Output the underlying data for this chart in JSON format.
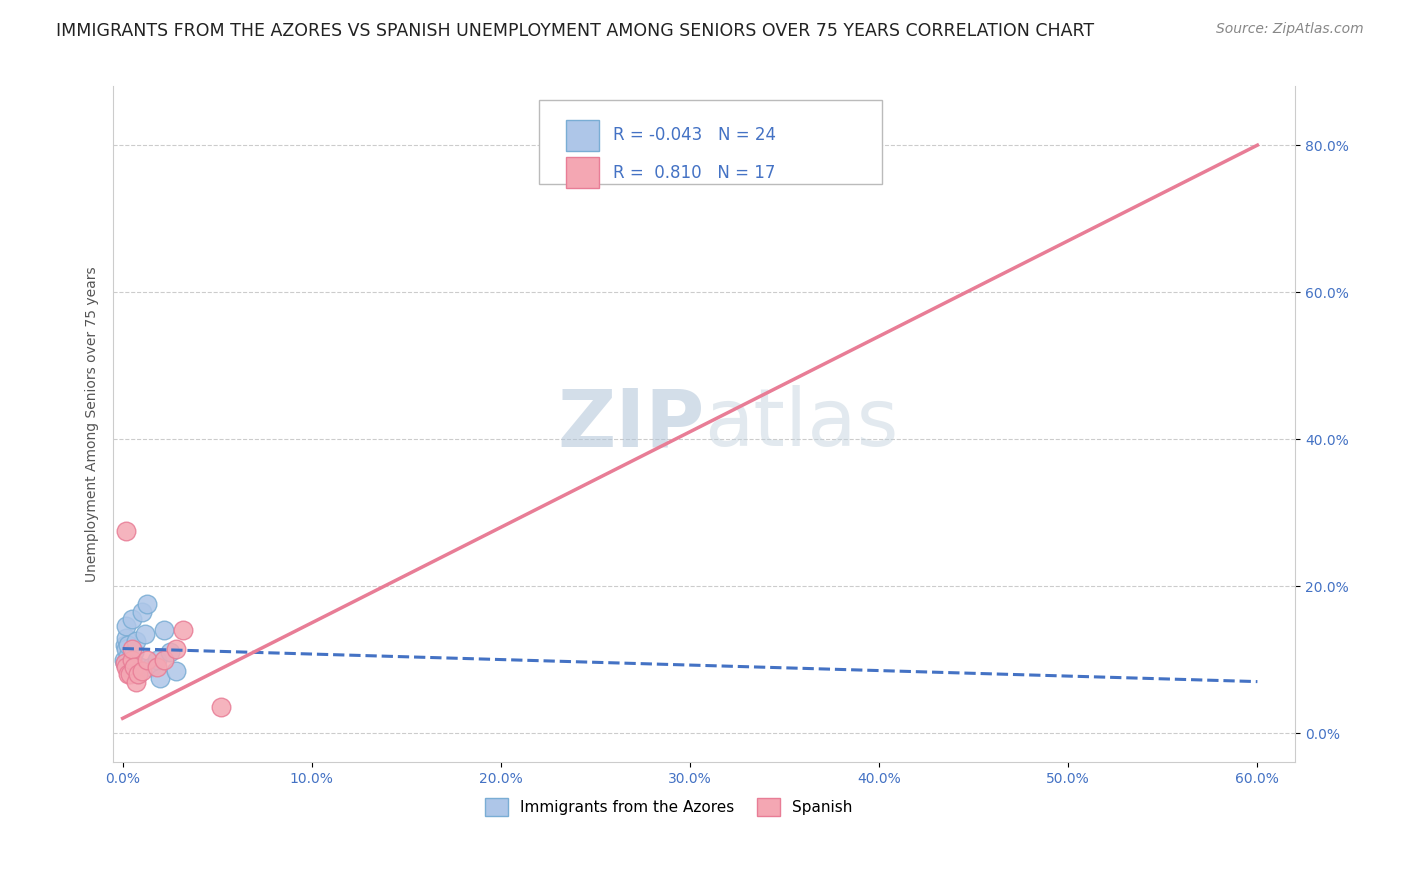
{
  "title": "IMMIGRANTS FROM THE AZORES VS SPANISH UNEMPLOYMENT AMONG SENIORS OVER 75 YEARS CORRELATION CHART",
  "source": "Source: ZipAtlas.com",
  "ylabel": "Unemployment Among Seniors over 75 years",
  "watermark": "ZIPatlas",
  "legend_entries": [
    {
      "label": "Immigrants from the Azores",
      "color": "#aec6e8",
      "edge": "#7aadd4",
      "R": "-0.043",
      "N": "24"
    },
    {
      "label": "Spanish",
      "color": "#f4a7b3",
      "edge": "#e87d96",
      "R": "0.810",
      "N": "17"
    }
  ],
  "blue_scatter_x": [
    0.0005,
    0.001,
    0.001,
    0.002,
    0.002,
    0.002,
    0.003,
    0.003,
    0.004,
    0.005,
    0.005,
    0.006,
    0.007,
    0.008,
    0.009,
    0.01,
    0.012,
    0.013,
    0.015,
    0.018,
    0.02,
    0.022,
    0.025,
    0.028
  ],
  "blue_scatter_y": [
    0.1,
    0.12,
    0.095,
    0.13,
    0.115,
    0.145,
    0.105,
    0.12,
    0.09,
    0.1,
    0.155,
    0.11,
    0.125,
    0.08,
    0.09,
    0.165,
    0.135,
    0.175,
    0.09,
    0.1,
    0.075,
    0.14,
    0.11,
    0.085
  ],
  "pink_scatter_x": [
    0.001,
    0.002,
    0.002,
    0.003,
    0.004,
    0.005,
    0.005,
    0.006,
    0.007,
    0.008,
    0.01,
    0.013,
    0.018,
    0.022,
    0.028,
    0.032,
    0.052
  ],
  "pink_scatter_y": [
    0.095,
    0.09,
    0.275,
    0.08,
    0.08,
    0.1,
    0.115,
    0.09,
    0.07,
    0.08,
    0.085,
    0.1,
    0.09,
    0.1,
    0.115,
    0.14,
    0.035
  ],
  "blue_line_x": [
    0.0,
    0.6
  ],
  "blue_line_y": [
    0.115,
    0.07
  ],
  "pink_line_x": [
    0.0,
    0.6
  ],
  "pink_line_y": [
    0.02,
    0.8
  ],
  "xlim": [
    -0.005,
    0.62
  ],
  "ylim": [
    -0.04,
    0.88
  ],
  "x_ticks": [
    0.0,
    0.1,
    0.2,
    0.3,
    0.4,
    0.5,
    0.6
  ],
  "x_tick_labels": [
    "0.0%",
    "10.0%",
    "20.0%",
    "30.0%",
    "40.0%",
    "50.0%",
    "60.0%"
  ],
  "y_ticks": [
    0.0,
    0.2,
    0.4,
    0.6,
    0.8
  ],
  "y_tick_labels": [
    "0.0%",
    "20.0%",
    "40.0%",
    "60.0%",
    "80.0%"
  ],
  "scatter_color_blue": "#aec6e8",
  "scatter_color_pink": "#f4a7b3",
  "scatter_edge_blue": "#7aadd4",
  "scatter_edge_pink": "#e87d96",
  "line_color_blue": "#4472c4",
  "line_color_pink": "#e87d96",
  "bg_color": "#ffffff",
  "grid_color": "#cccccc",
  "title_color": "#222222",
  "axis_label_color": "#555555",
  "tick_label_color": "#4472c4",
  "watermark_color_zip": "#b0c8e0",
  "watermark_color_atlas": "#c8d8e0",
  "title_fontsize": 12.5,
  "source_fontsize": 10,
  "ylabel_fontsize": 10,
  "tick_fontsize": 10,
  "legend_fontsize": 12,
  "scatter_size": 180
}
